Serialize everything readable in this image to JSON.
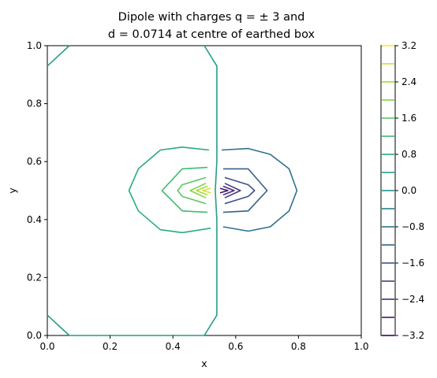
{
  "chart_data": {
    "type": "contour",
    "title_line1": "Dipole with charges q = ± 3 and",
    "title_line2": "d = 0.0714 at centre of earthed box",
    "xlabel": "x",
    "ylabel": "y",
    "xlim": [
      0,
      1
    ],
    "ylim": [
      0,
      1
    ],
    "x_ticks": [
      "0.0",
      "0.2",
      "0.4",
      "0.6",
      "0.8",
      "1.0"
    ],
    "y_ticks": [
      "0.0",
      "0.2",
      "0.4",
      "0.6",
      "0.8",
      "1.0"
    ],
    "colorbar": {
      "levels": [
        -3.2,
        -2.8,
        -2.4,
        -2.0,
        -1.6,
        -1.2,
        -0.8,
        -0.4,
        0.0,
        0.4,
        0.8,
        1.2,
        1.6,
        2.0,
        2.4,
        2.8,
        3.2
      ],
      "tick_labels": [
        "3.2",
        "2.4",
        "1.6",
        "0.8",
        "0.0",
        "−0.8",
        "−1.6",
        "−2.4",
        "−3.2"
      ],
      "colormap": "viridis"
    },
    "contours": [
      {
        "level": 0.4,
        "points": [
          [
            0.0,
            0.93
          ],
          [
            0.07,
            1.0
          ]
        ]
      },
      {
        "level": 0.4,
        "points": [
          [
            0.5,
            1.0
          ],
          [
            0.54,
            0.93
          ],
          [
            0.54,
            0.6
          ],
          [
            0.535,
            0.5
          ],
          [
            0.54,
            0.4
          ],
          [
            0.54,
            0.07
          ],
          [
            0.5,
            0.0
          ]
        ]
      },
      {
        "level": 0.4,
        "points": [
          [
            0.0,
            0.07
          ],
          [
            0.07,
            0.0
          ]
        ]
      },
      {
        "level": 0.4,
        "points": [
          [
            0.07,
            0.0
          ],
          [
            0.5,
            0.0
          ]
        ]
      },
      {
        "level": 0.8,
        "points": [
          [
            0.515,
            0.64
          ],
          [
            0.43,
            0.65
          ],
          [
            0.36,
            0.64
          ],
          [
            0.29,
            0.575
          ],
          [
            0.26,
            0.5
          ],
          [
            0.29,
            0.43
          ],
          [
            0.36,
            0.365
          ],
          [
            0.43,
            0.355
          ],
          [
            0.52,
            0.37
          ]
        ]
      },
      {
        "level": 1.2,
        "points": [
          [
            0.51,
            0.58
          ],
          [
            0.43,
            0.575
          ],
          [
            0.365,
            0.5
          ],
          [
            0.43,
            0.43
          ],
          [
            0.51,
            0.425
          ]
        ]
      },
      {
        "level": 1.6,
        "points": [
          [
            0.505,
            0.545
          ],
          [
            0.43,
            0.52
          ],
          [
            0.415,
            0.5
          ],
          [
            0.43,
            0.48
          ],
          [
            0.505,
            0.455
          ]
        ]
      },
      {
        "level": 2.0,
        "points": [
          [
            0.505,
            0.525
          ],
          [
            0.455,
            0.5
          ],
          [
            0.505,
            0.475
          ]
        ]
      },
      {
        "level": 2.4,
        "points": [
          [
            0.51,
            0.515
          ],
          [
            0.475,
            0.5
          ],
          [
            0.51,
            0.485
          ]
        ]
      },
      {
        "level": 2.8,
        "points": [
          [
            0.52,
            0.508
          ],
          [
            0.495,
            0.5
          ],
          [
            0.52,
            0.492
          ]
        ]
      },
      {
        "level": -0.8,
        "points": [
          [
            0.555,
            0.64
          ],
          [
            0.64,
            0.645
          ],
          [
            0.71,
            0.625
          ],
          [
            0.77,
            0.575
          ],
          [
            0.795,
            0.5
          ],
          [
            0.77,
            0.43
          ],
          [
            0.71,
            0.375
          ],
          [
            0.64,
            0.36
          ],
          [
            0.56,
            0.375
          ]
        ]
      },
      {
        "level": -1.2,
        "points": [
          [
            0.56,
            0.575
          ],
          [
            0.64,
            0.575
          ],
          [
            0.7,
            0.5
          ],
          [
            0.64,
            0.43
          ],
          [
            0.56,
            0.425
          ]
        ]
      },
      {
        "level": -1.6,
        "points": [
          [
            0.565,
            0.545
          ],
          [
            0.64,
            0.52
          ],
          [
            0.66,
            0.5
          ],
          [
            0.64,
            0.48
          ],
          [
            0.565,
            0.455
          ]
        ]
      },
      {
        "level": -2.0,
        "points": [
          [
            0.565,
            0.525
          ],
          [
            0.615,
            0.5
          ],
          [
            0.565,
            0.475
          ]
        ]
      },
      {
        "level": -2.4,
        "points": [
          [
            0.56,
            0.515
          ],
          [
            0.595,
            0.5
          ],
          [
            0.56,
            0.485
          ]
        ]
      },
      {
        "level": -2.8,
        "points": [
          [
            0.55,
            0.508
          ],
          [
            0.575,
            0.5
          ],
          [
            0.55,
            0.492
          ]
        ]
      }
    ]
  }
}
